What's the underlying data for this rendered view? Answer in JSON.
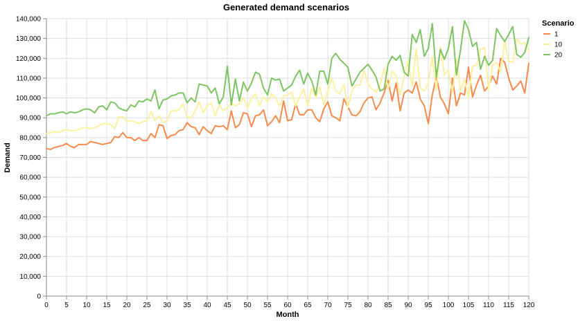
{
  "chart_data": {
    "type": "line",
    "title": "Generated demand scenarios",
    "xlabel": "Month",
    "ylabel": "Demand",
    "xlim": [
      0,
      120
    ],
    "ylim": [
      0,
      140000
    ],
    "xticks": [
      0,
      5,
      10,
      15,
      20,
      25,
      30,
      35,
      40,
      45,
      50,
      55,
      60,
      65,
      70,
      75,
      80,
      85,
      90,
      95,
      100,
      105,
      110,
      115,
      120
    ],
    "yticks": [
      0,
      10000,
      20000,
      30000,
      40000,
      50000,
      60000,
      70000,
      80000,
      90000,
      100000,
      110000,
      120000,
      130000,
      140000
    ],
    "ytick_labels": [
      "0",
      "10,000",
      "20,000",
      "30,000",
      "40,000",
      "50,000",
      "60,000",
      "70,000",
      "80,000",
      "90,000",
      "100,000",
      "110,000",
      "120,000",
      "130,000",
      "140,000"
    ],
    "grid": true,
    "legend": {
      "title": "Scenario",
      "position": "right"
    },
    "series": [
      {
        "name": "1",
        "color": "#f58a4b",
        "values": [
          74500,
          74000,
          75000,
          75500,
          76000,
          77000,
          75500,
          75000,
          76500,
          76500,
          76500,
          78000,
          77500,
          77000,
          76500,
          77000,
          77500,
          80500,
          80000,
          82500,
          80000,
          80000,
          78500,
          80000,
          78500,
          78500,
          82000,
          80000,
          86500,
          86000,
          79500,
          81000,
          81500,
          83500,
          84000,
          87500,
          85500,
          85000,
          81500,
          85500,
          83500,
          82000,
          86000,
          85500,
          86000,
          84000,
          93500,
          85000,
          86500,
          92500,
          92000,
          85500,
          91000,
          91500,
          94000,
          86000,
          88000,
          91000,
          87500,
          98500,
          88500,
          89000,
          97000,
          91500,
          91500,
          94000,
          94000,
          90000,
          88000,
          94500,
          98000,
          91000,
          90000,
          88500,
          99500,
          95500,
          91500,
          91000,
          93000,
          97500,
          100000,
          100500,
          94000,
          97500,
          102500,
          109000,
          98500,
          107500,
          93500,
          102500,
          104000,
          102500,
          108000,
          99500,
          96000,
          87000,
          101500,
          111000,
          100500,
          97000,
          92000,
          110000,
          96000,
          102500,
          101500,
          115500,
          100500,
          106500,
          111500,
          103500,
          106000,
          111000,
          107000,
          120000,
          118000,
          110000,
          104000,
          106000,
          108500,
          102500,
          117500
        ]
      },
      {
        "name": "10",
        "color": "#fff0a0",
        "values": [
          82000,
          82500,
          83000,
          82500,
          83500,
          84000,
          83500,
          83500,
          84000,
          85000,
          85000,
          84500,
          85000,
          86000,
          87000,
          87000,
          86500,
          84500,
          90500,
          90500,
          88000,
          88500,
          88000,
          87000,
          88000,
          88500,
          93000,
          88500,
          91000,
          87500,
          88500,
          93500,
          93500,
          94000,
          97000,
          90500,
          90000,
          93500,
          98000,
          92500,
          96000,
          97500,
          91000,
          96500,
          93500,
          95000,
          97500,
          96000,
          97000,
          100000,
          95000,
          100000,
          102000,
          96000,
          100500,
          98000,
          102000,
          100000,
          96000,
          101000,
          101500,
          103000,
          96000,
          100500,
          104500,
          96000,
          105000,
          100000,
          105500,
          96500,
          103500,
          110000,
          103500,
          102000,
          107000,
          95000,
          103500,
          106500,
          106500,
          114000,
          107000,
          104500,
          103000,
          106500,
          115000,
          104500,
          113500,
          111000,
          101500,
          111000,
          119000,
          106000,
          125000,
          105000,
          103500,
          107500,
          121000,
          104000,
          126000,
          111500,
          114000,
          102500,
          120000,
          103500,
          109500,
          100000,
          116000,
          116500,
          124500,
          125500,
          104000,
          116500,
          118000,
          113000,
          129000,
          118500,
          118000,
          130000,
          127000,
          128000,
          123500
        ]
      },
      {
        "name": "20",
        "color": "#7dc462",
        "values": [
          91000,
          92000,
          92000,
          92500,
          93000,
          92000,
          93000,
          92500,
          93000,
          94000,
          94500,
          94000,
          92500,
          95500,
          96000,
          94000,
          98000,
          97500,
          95000,
          94000,
          93500,
          96500,
          95500,
          98500,
          98000,
          99500,
          98500,
          104000,
          94500,
          99000,
          99500,
          101000,
          101500,
          102500,
          102500,
          97500,
          100000,
          98000,
          107000,
          106500,
          106000,
          102500,
          105000,
          97000,
          100500,
          116000,
          96500,
          109500,
          98500,
          108000,
          103500,
          107500,
          113000,
          112000,
          105000,
          101500,
          110000,
          109000,
          109500,
          103500,
          105000,
          106500,
          111000,
          114000,
          107000,
          112500,
          108500,
          101500,
          113500,
          113500,
          107000,
          120000,
          122500,
          119500,
          117500,
          115500,
          106000,
          109500,
          113000,
          115000,
          117000,
          114000,
          110500,
          103500,
          104500,
          117000,
          121000,
          119000,
          121500,
          113000,
          111000,
          132000,
          128000,
          134500,
          121000,
          125000,
          137500,
          110500,
          124500,
          119500,
          125000,
          136000,
          111500,
          124000,
          139000,
          134500,
          126000,
          128000,
          114500,
          121000,
          116500,
          119000,
          135000,
          131500,
          128500,
          132000,
          136000,
          122000,
          120500,
          123000,
          130500
        ]
      }
    ]
  }
}
